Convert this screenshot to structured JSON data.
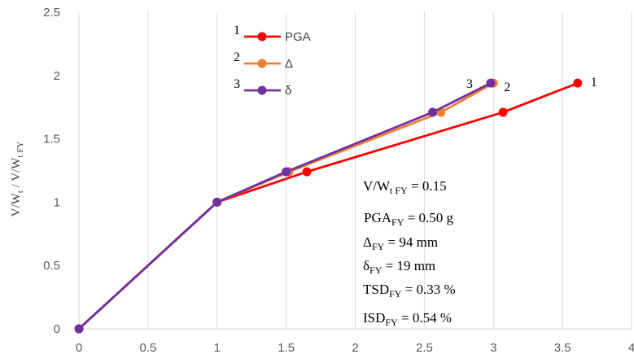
{
  "chart_data": {
    "type": "line",
    "ylabel": "V/W_t / V/W_t FY",
    "xlim": [
      0,
      4
    ],
    "ylim": [
      0,
      2.5
    ],
    "x_ticks": [
      "0",
      "0.5",
      "1",
      "1.5",
      "2",
      "2.5",
      "3",
      "3.5",
      "4"
    ],
    "y_ticks": [
      "0",
      "0.5",
      "1",
      "1.5",
      "2",
      "2.5"
    ],
    "grid": "vertical",
    "legend_position": "top-center",
    "series": [
      {
        "name": "PGA",
        "number": "1",
        "color": "#ff0000",
        "x": [
          0,
          1,
          1.65,
          3.07,
          3.61
        ],
        "y": [
          0,
          1,
          1.24,
          1.71,
          1.94
        ]
      },
      {
        "name": "Δ",
        "number": "2",
        "color": "#ed7d31",
        "x": [
          0,
          1,
          1.52,
          2.62,
          3.0
        ],
        "y": [
          0,
          1,
          1.24,
          1.71,
          1.94
        ]
      },
      {
        "name": "δ",
        "number": "3",
        "color": "#7030a0",
        "x": [
          0,
          1,
          1.5,
          2.56,
          2.98
        ],
        "y": [
          0,
          1,
          1.24,
          1.71,
          1.94
        ]
      }
    ],
    "line_labels": [
      "3",
      "2",
      "1"
    ],
    "annotations": [
      {
        "base": "V/W",
        "sub": "t FY",
        "rest": " = 0.15"
      },
      {
        "base": " PGA",
        "sub": "FY",
        "rest": " = 0.50 g"
      },
      {
        "base": "Δ",
        "sub": "FY",
        "rest": " = 94 mm"
      },
      {
        "base": "δ",
        "sub": "FY",
        "rest": " = 19 mm"
      },
      {
        "base": "TSD",
        "sub": "FY",
        "rest": " = 0.33 %"
      },
      {
        "base": "ISD",
        "sub": "FY",
        "rest": " = 0.54 %"
      }
    ]
  }
}
